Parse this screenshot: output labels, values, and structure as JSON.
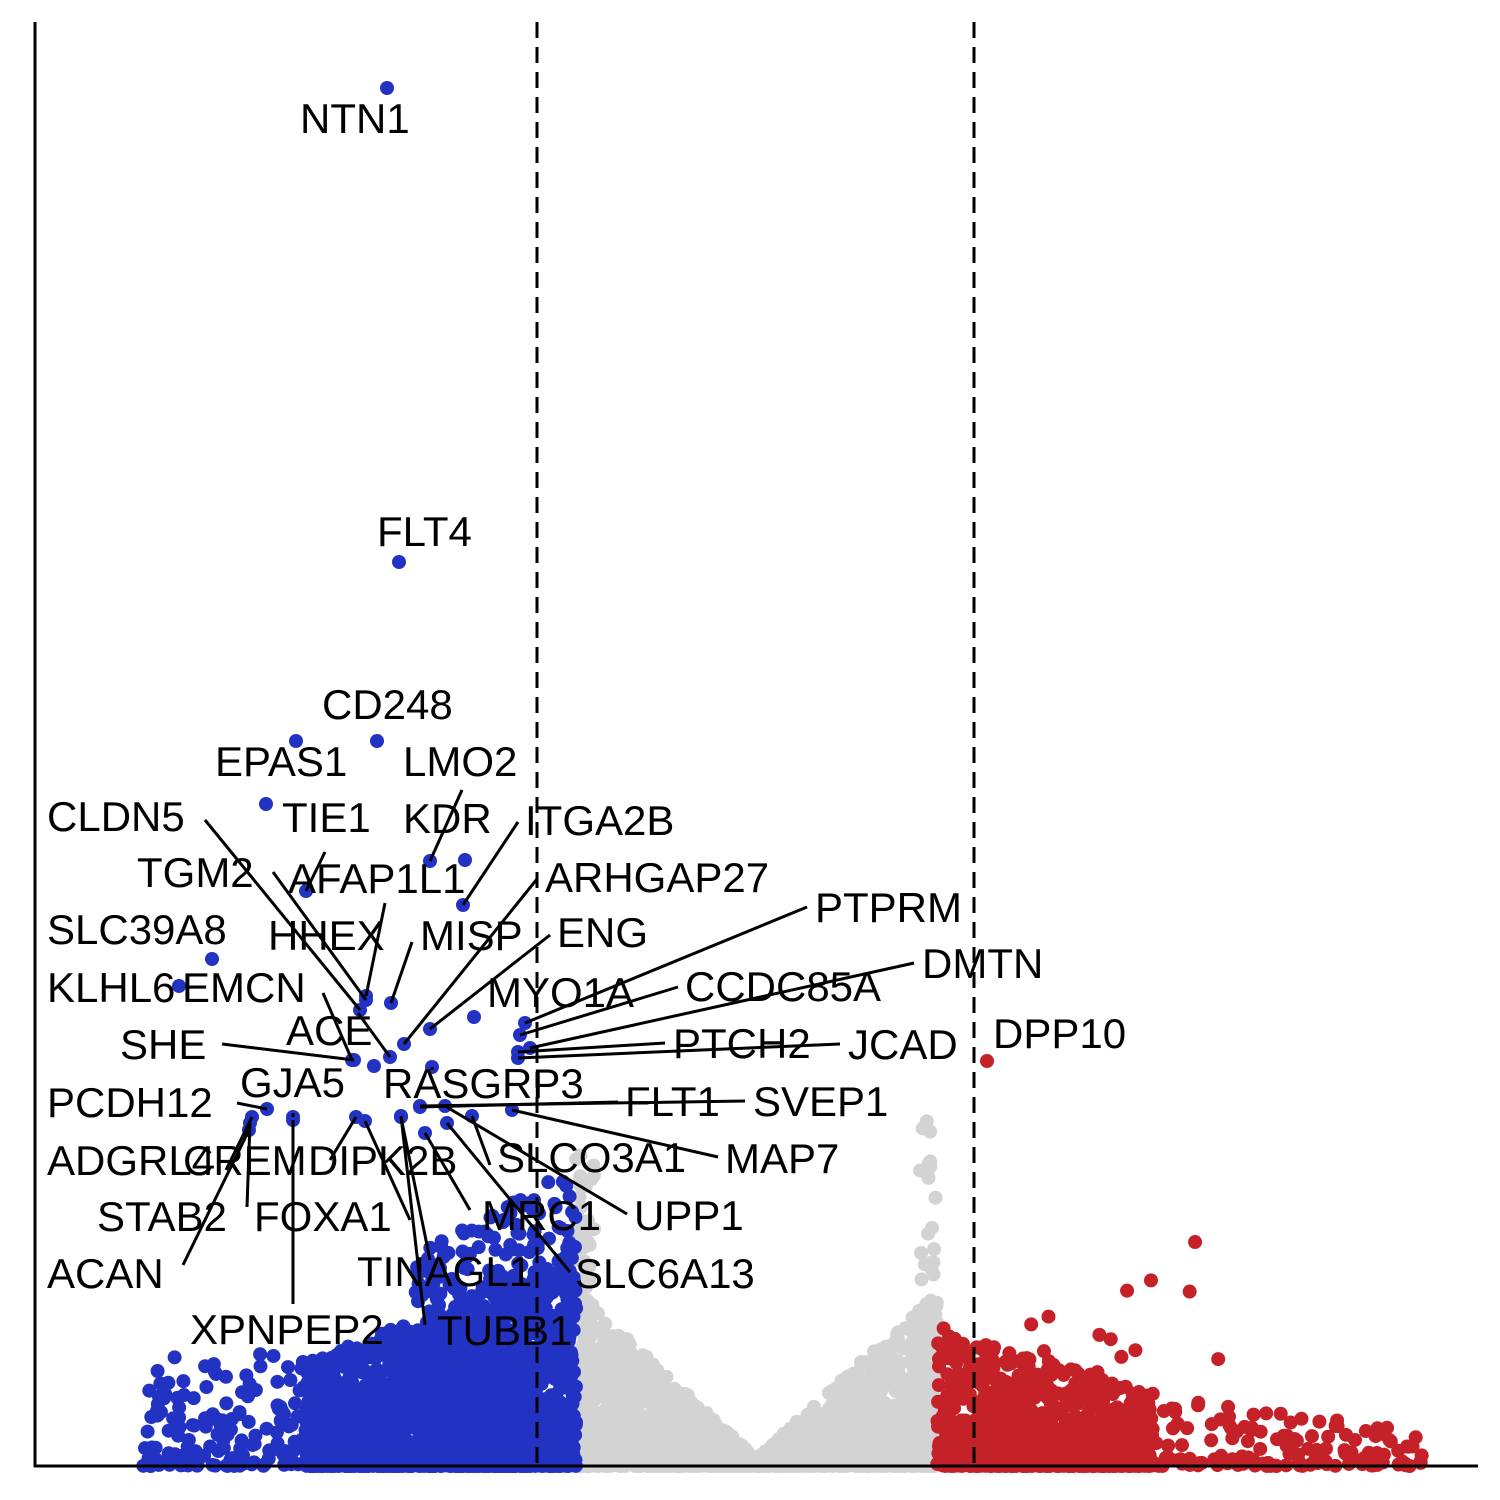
{
  "chart_data": {
    "type": "scatter",
    "title": "",
    "xlabel": "",
    "ylabel": "",
    "xlim": [
      -4,
      4
    ],
    "ylim": [
      0,
      31
    ],
    "grid": false,
    "legend": "none",
    "thresholds_x": [
      -1,
      1
    ],
    "colors": {
      "down": "#2233C4",
      "ns": "#D3D3D3",
      "up": "#C42228"
    },
    "groups": [
      "down",
      "not significant",
      "up"
    ],
    "labeled_points": [
      {
        "gene": "NTN1",
        "x": -1.85,
        "y": 29.2,
        "group": "down"
      },
      {
        "gene": "FLT4",
        "x": -1.8,
        "y": 19.0,
        "group": "down"
      },
      {
        "gene": "CD248",
        "x": -1.9,
        "y": 14.5,
        "group": "down"
      },
      {
        "gene": "EPAS1",
        "x": -2.3,
        "y": 14.5,
        "group": "down"
      },
      {
        "gene": "LMO2",
        "x": -1.5,
        "y": 12.0,
        "group": "down"
      },
      {
        "gene": "TIE1",
        "x": -2.45,
        "y": 13.2,
        "group": "down"
      },
      {
        "gene": "CLDN5",
        "x": -1.85,
        "y": 9.3,
        "group": "down"
      },
      {
        "gene": "KDR",
        "x": -1.65,
        "y": 11.3,
        "group": "down"
      },
      {
        "gene": "ITGA2B",
        "x": -1.4,
        "y": 10.2,
        "group": "down"
      },
      {
        "gene": "TGM2",
        "x": -2.35,
        "y": 10.3,
        "group": "down"
      },
      {
        "gene": "AFAP1L1",
        "x": -1.8,
        "y": 9.6,
        "group": "down"
      },
      {
        "gene": "ARHGAP27",
        "x": -1.6,
        "y": 8.6,
        "group": "down"
      },
      {
        "gene": "SLC39A8",
        "x": -2.75,
        "y": 9.2,
        "group": "down"
      },
      {
        "gene": "HHEX",
        "x": -1.95,
        "y": 10.7,
        "group": "down"
      },
      {
        "gene": "MISP",
        "x": -1.7,
        "y": 9.0,
        "group": "down"
      },
      {
        "gene": "ENG",
        "x": -1.5,
        "y": 8.2,
        "group": "down"
      },
      {
        "gene": "PTPRM",
        "x": -1.05,
        "y": 8.2,
        "group": "down"
      },
      {
        "gene": "KLHL6",
        "x": -2.95,
        "y": 9.0,
        "group": "down"
      },
      {
        "gene": "EMCN",
        "x": -2.0,
        "y": 7.9,
        "group": "down"
      },
      {
        "gene": "MYO1A",
        "x": -1.15,
        "y": 7.4,
        "group": "down"
      },
      {
        "gene": "CCDC85A",
        "x": -1.1,
        "y": 7.7,
        "group": "down"
      },
      {
        "gene": "DMTN",
        "x": -1.08,
        "y": 7.6,
        "group": "down"
      },
      {
        "gene": "ACE",
        "x": -1.9,
        "y": 7.5,
        "group": "down"
      },
      {
        "gene": "SHE",
        "x": -2.05,
        "y": 7.5,
        "group": "down"
      },
      {
        "gene": "PTCH2",
        "x": -1.1,
        "y": 7.3,
        "group": "down"
      },
      {
        "gene": "JCAD",
        "x": -1.05,
        "y": 7.2,
        "group": "down"
      },
      {
        "gene": "DPP10",
        "x": 1.05,
        "y": 7.4,
        "group": "up"
      },
      {
        "gene": "GJA5",
        "x": -1.85,
        "y": 7.5,
        "group": "down"
      },
      {
        "gene": "RASGRP3",
        "x": -1.6,
        "y": 7.0,
        "group": "down"
      },
      {
        "gene": "FLT1",
        "x": -1.4,
        "y": 6.2,
        "group": "down"
      },
      {
        "gene": "SVEP1",
        "x": -1.6,
        "y": 6.2,
        "group": "down"
      },
      {
        "gene": "PCDH12",
        "x": -2.4,
        "y": 6.2,
        "group": "down"
      },
      {
        "gene": "MAP7",
        "x": -1.15,
        "y": 6.2,
        "group": "down"
      },
      {
        "gene": "ADGRL4",
        "x": -2.65,
        "y": 5.7,
        "group": "down"
      },
      {
        "gene": "CREM",
        "x": -2.65,
        "y": 6.0,
        "group": "down"
      },
      {
        "gene": "DIPK2B",
        "x": -1.95,
        "y": 6.0,
        "group": "down"
      },
      {
        "gene": "SLCO3A1",
        "x": -1.55,
        "y": 6.0,
        "group": "down"
      },
      {
        "gene": "UPP1",
        "x": -1.5,
        "y": 6.1,
        "group": "down"
      },
      {
        "gene": "STAB2",
        "x": -2.7,
        "y": 5.8,
        "group": "down"
      },
      {
        "gene": "FOXA1",
        "x": -2.35,
        "y": 6.0,
        "group": "down"
      },
      {
        "gene": "MRC1",
        "x": -1.6,
        "y": 5.7,
        "group": "down"
      },
      {
        "gene": "ACAN",
        "x": -2.7,
        "y": 5.8,
        "group": "down"
      },
      {
        "gene": "TINAGL1",
        "x": -1.8,
        "y": 6.0,
        "group": "down"
      },
      {
        "gene": "SLC6A13",
        "x": -1.45,
        "y": 6.0,
        "group": "down"
      },
      {
        "gene": "XPNPEP2",
        "x": -2.35,
        "y": 6.0,
        "group": "down"
      },
      {
        "gene": "TUBB1",
        "x": -1.85,
        "y": 6.0,
        "group": "down"
      }
    ]
  }
}
